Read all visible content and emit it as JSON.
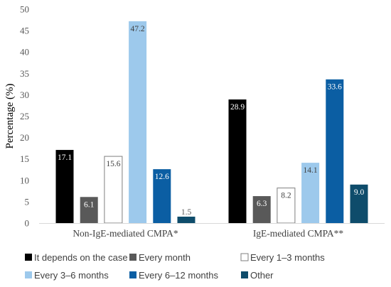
{
  "chart_data": {
    "type": "bar",
    "title": "",
    "xlabel": "",
    "ylabel": "Percentage (%)",
    "ylim": [
      0,
      50
    ],
    "yticks": [
      0,
      5,
      10,
      15,
      20,
      25,
      30,
      35,
      40,
      45,
      50
    ],
    "categories": [
      "Non-IgE-mediated CMPA*",
      "IgE-mediated CMPA**"
    ],
    "series": [
      {
        "name": "It depends on the case",
        "color": "#000000",
        "label_color": "#ffffff",
        "values": [
          17.1,
          28.9
        ]
      },
      {
        "name": "Every month",
        "color": "#595959",
        "label_color": "#ffffff",
        "values": [
          6.1,
          6.3
        ]
      },
      {
        "name": "Every 1–3 months",
        "color": "#ffffff",
        "stroke": "#7f7f7f",
        "label_color": "#404040",
        "values": [
          15.6,
          8.2
        ]
      },
      {
        "name": "Every 3–6 months",
        "color": "#9dc9ec",
        "label_color": "#404040",
        "values": [
          47.2,
          14.1
        ]
      },
      {
        "name": "Every 6–12 months",
        "color": "#0b5ea3",
        "label_color": "#ffffff",
        "values": [
          12.6,
          33.6
        ]
      },
      {
        "name": "Other",
        "color": "#0e4c6b",
        "label_color": "#ffffff",
        "values": [
          1.5,
          9.0
        ]
      }
    ],
    "value_labels": [
      [
        "17.1",
        "28.9"
      ],
      [
        "6.1",
        "6.3"
      ],
      [
        "15.6",
        "8.2"
      ],
      [
        "47.2",
        "14.1"
      ],
      [
        "12.6",
        "33.6"
      ],
      [
        "1.5",
        "9.0"
      ]
    ],
    "grid": false,
    "legend_position": "bottom"
  }
}
